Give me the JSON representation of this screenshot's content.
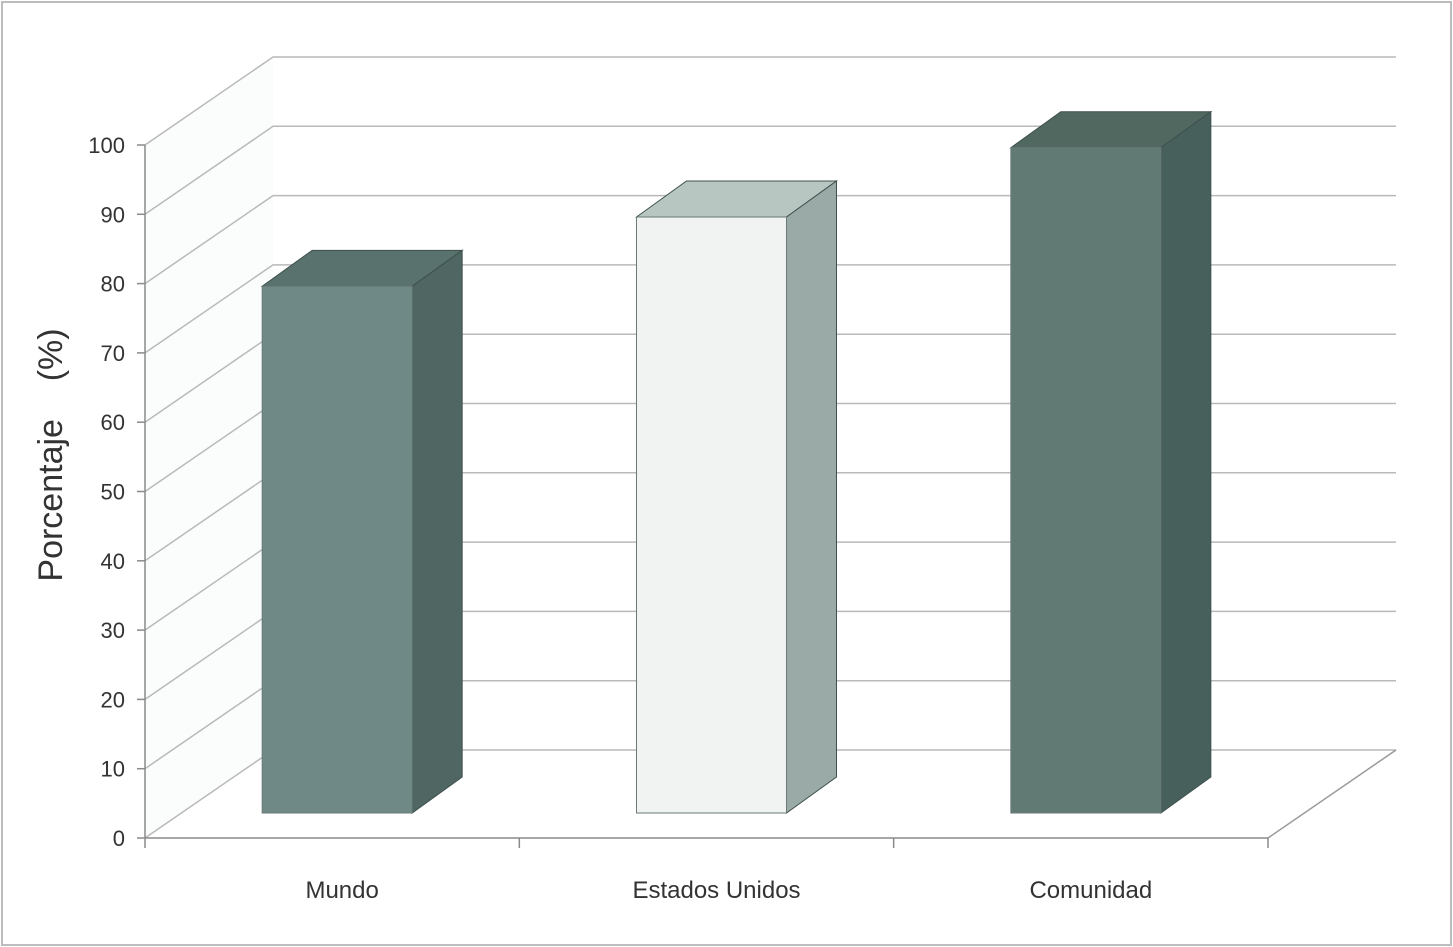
{
  "chart_data": {
    "type": "bar",
    "title": "",
    "xlabel": "",
    "ylabel": "Porcentaje    (%)",
    "categories": [
      "Mundo",
      "Estados Unidos",
      "Comunidad"
    ],
    "values": [
      76,
      86,
      96
    ],
    "ylim": [
      0,
      100
    ],
    "yticks": [
      0,
      10,
      20,
      30,
      40,
      50,
      60,
      70,
      80,
      90,
      100
    ],
    "grid": true,
    "legend": "none",
    "style": "3d",
    "colors": {
      "bar_front": [
        "#6f8a86",
        "#f1f3f2",
        "#617a74"
      ],
      "bar_side": [
        "#4f6662",
        "#9aaaa6",
        "#47605b"
      ],
      "bar_top": [
        "#5a726e",
        "#b8c6c2",
        "#50685f"
      ],
      "grid": "#b9b9b9",
      "frame": "#bdbdbd"
    }
  }
}
